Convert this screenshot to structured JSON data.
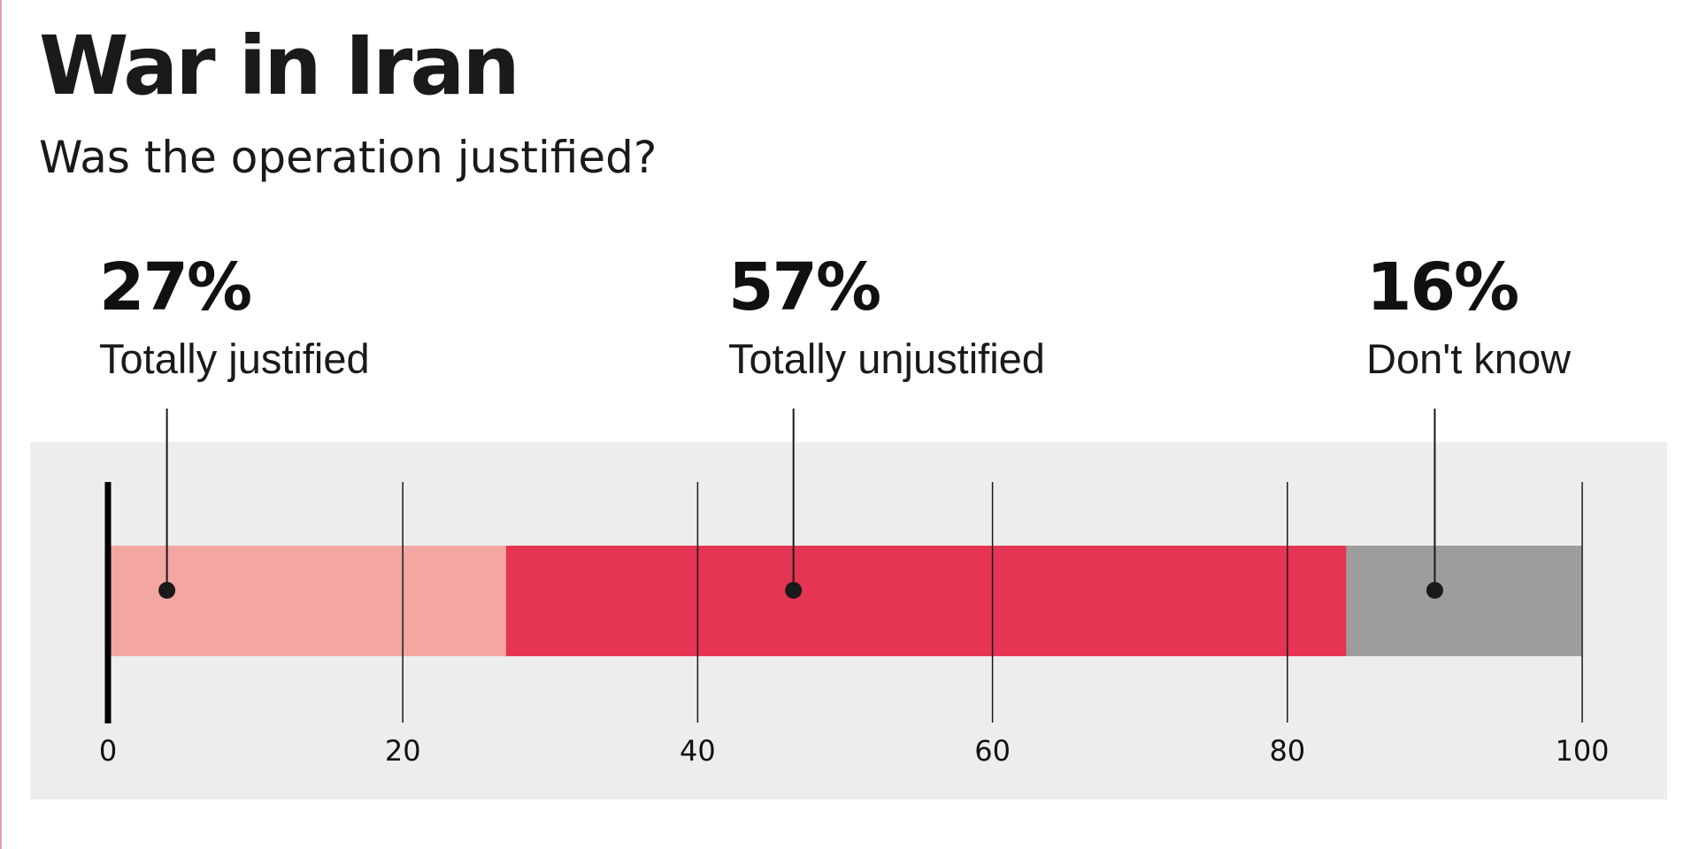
{
  "title": "War in Iran",
  "subtitle": "Was the operation justified?",
  "colors": {
    "panel": "#ededed",
    "totally_justified": "#f4a6a3",
    "totally_unjustified": "#e63454",
    "dont_know": "#9d9d9c",
    "ink": "#1a1a1a"
  },
  "chart_data": {
    "type": "bar",
    "orientation": "horizontal-stacked",
    "title": "War in Iran",
    "subtitle": "Was the operation justified?",
    "xlim": [
      0,
      100
    ],
    "xticks": [
      0,
      20,
      40,
      60,
      80,
      100
    ],
    "grid": true,
    "series": [
      {
        "name": "Totally justified",
        "value": 27,
        "value_label": "27%",
        "color": "#f4a6a3",
        "marker_at": 4
      },
      {
        "name": "Totally unjustified",
        "value": 57,
        "value_label": "57%",
        "color": "#e63454",
        "marker_at": 46.5
      },
      {
        "name": "Don't know",
        "value": 16,
        "value_label": "16%",
        "color": "#9d9d9c",
        "marker_at": 90
      }
    ]
  }
}
